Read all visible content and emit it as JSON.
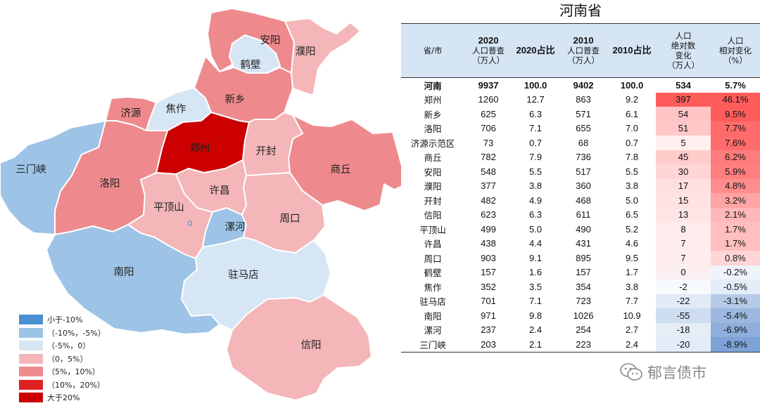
{
  "title": "河南省",
  "header": {
    "province": "省/市",
    "pop2020_year": "2020",
    "pop2020_sub1": "人口普查",
    "pop2020_sub2": "（万人）",
    "share2020": "2020占比",
    "pop2010_year": "2010",
    "pop2010_sub1": "人口普查",
    "pop2010_sub2": "（万人）",
    "share2010": "2010占比",
    "abs_l1": "人口",
    "abs_l2": "绝对数",
    "abs_l3": "变化",
    "abs_l4": "（万人）",
    "rel_l1": "人口",
    "rel_l2": "相对变化",
    "rel_l3": "（%）"
  },
  "chart_data": {
    "type": "table",
    "rows": [
      {
        "name": "河南",
        "pop2020": "9937",
        "share2020": "100.0",
        "pop2010": "9402",
        "share2010": "100.0",
        "abs": "534",
        "rel": "5.7%",
        "abs_value": 534,
        "rel_value": 5.7,
        "total": true
      },
      {
        "name": "郑州",
        "pop2020": "1260",
        "share2020": "12.7",
        "pop2010": "863",
        "share2010": "9.2",
        "abs": "397",
        "rel": "46.1%",
        "abs_value": 397,
        "rel_value": 46.1
      },
      {
        "name": "新乡",
        "pop2020": "625",
        "share2020": "6.3",
        "pop2010": "571",
        "share2010": "6.1",
        "abs": "54",
        "rel": "9.5%",
        "abs_value": 54,
        "rel_value": 9.5
      },
      {
        "name": "洛阳",
        "pop2020": "706",
        "share2020": "7.1",
        "pop2010": "655",
        "share2010": "7.0",
        "abs": "51",
        "rel": "7.7%",
        "abs_value": 51,
        "rel_value": 7.7
      },
      {
        "name": "济源示范区",
        "pop2020": "73",
        "share2020": "0.7",
        "pop2010": "68",
        "share2010": "0.7",
        "abs": "5",
        "rel": "7.6%",
        "abs_value": 5,
        "rel_value": 7.6
      },
      {
        "name": "商丘",
        "pop2020": "782",
        "share2020": "7.9",
        "pop2010": "736",
        "share2010": "7.8",
        "abs": "45",
        "rel": "6.2%",
        "abs_value": 45,
        "rel_value": 6.2
      },
      {
        "name": "安阳",
        "pop2020": "548",
        "share2020": "5.5",
        "pop2010": "517",
        "share2010": "5.5",
        "abs": "30",
        "rel": "5.9%",
        "abs_value": 30,
        "rel_value": 5.9
      },
      {
        "name": "濮阳",
        "pop2020": "377",
        "share2020": "3.8",
        "pop2010": "360",
        "share2010": "3.8",
        "abs": "17",
        "rel": "4.8%",
        "abs_value": 17,
        "rel_value": 4.8
      },
      {
        "name": "开封",
        "pop2020": "482",
        "share2020": "4.9",
        "pop2010": "468",
        "share2010": "5.0",
        "abs": "15",
        "rel": "3.2%",
        "abs_value": 15,
        "rel_value": 3.2
      },
      {
        "name": "信阳",
        "pop2020": "623",
        "share2020": "6.3",
        "pop2010": "611",
        "share2010": "6.5",
        "abs": "13",
        "rel": "2.1%",
        "abs_value": 13,
        "rel_value": 2.1
      },
      {
        "name": "平顶山",
        "pop2020": "499",
        "share2020": "5.0",
        "pop2010": "490",
        "share2010": "5.2",
        "abs": "8",
        "rel": "1.7%",
        "abs_value": 8,
        "rel_value": 1.7
      },
      {
        "name": "许昌",
        "pop2020": "438",
        "share2020": "4.4",
        "pop2010": "431",
        "share2010": "4.6",
        "abs": "7",
        "rel": "1.7%",
        "abs_value": 7,
        "rel_value": 1.7
      },
      {
        "name": "周口",
        "pop2020": "903",
        "share2020": "9.1",
        "pop2010": "895",
        "share2010": "9.5",
        "abs": "7",
        "rel": "0.8%",
        "abs_value": 7,
        "rel_value": 0.8
      },
      {
        "name": "鹤壁",
        "pop2020": "157",
        "share2020": "1.6",
        "pop2010": "157",
        "share2010": "1.7",
        "abs": "0",
        "rel": "-0.2%",
        "abs_value": 0,
        "rel_value": -0.2
      },
      {
        "name": "焦作",
        "pop2020": "352",
        "share2020": "3.5",
        "pop2010": "354",
        "share2010": "3.8",
        "abs": "-2",
        "rel": "-0.5%",
        "abs_value": -2,
        "rel_value": -0.5
      },
      {
        "name": "驻马店",
        "pop2020": "701",
        "share2020": "7.1",
        "pop2010": "723",
        "share2010": "7.7",
        "abs": "-22",
        "rel": "-3.1%",
        "abs_value": -22,
        "rel_value": -3.1
      },
      {
        "name": "南阳",
        "pop2020": "971",
        "share2020": "9.8",
        "pop2010": "1026",
        "share2010": "10.9",
        "abs": "-55",
        "rel": "-5.4%",
        "abs_value": -55,
        "rel_value": -5.4
      },
      {
        "name": "漯河",
        "pop2020": "237",
        "share2020": "2.4",
        "pop2010": "254",
        "share2010": "2.7",
        "abs": "-18",
        "rel": "-6.9%",
        "abs_value": -18,
        "rel_value": -6.9
      },
      {
        "name": "三门峡",
        "pop2020": "203",
        "share2020": "2.1",
        "pop2010": "223",
        "share2010": "2.4",
        "abs": "-20",
        "rel": "-8.9%",
        "abs_value": -20,
        "rel_value": -8.9
      }
    ]
  },
  "map": {
    "colors": {
      "lt_neg10": "#4a90d0",
      "neg10_neg5": "#9dc3e6",
      "neg5_0": "#d6e6f4",
      "pos0_5": "#f4b6b8",
      "pos5_10": "#ee8a8d",
      "pos10_20": "#e02020",
      "gt_20": "#cc0000",
      "border": "#ffffff"
    },
    "regions": {
      "anyang": "安阳",
      "puyang": "濮阳",
      "hebi": "鹤壁",
      "xinxiang": "新乡",
      "jiyuan": "济源",
      "jiaozuo": "焦作",
      "zhengzhou": "郑州",
      "kaifeng": "开封",
      "shangqiu": "商丘",
      "sanmenxia": "三门峡",
      "luoyang": "洛阳",
      "xuchang": "许昌",
      "pingdingshan": "平顶山",
      "luohe": "漯河",
      "zhoukou": "周口",
      "nanyang": "南阳",
      "zhumadian": "驻马店",
      "xinyang": "信阳"
    }
  },
  "legend": [
    {
      "label": "小于-10%",
      "color": "#4a90d0"
    },
    {
      "label": "（-10%，-5%）",
      "color": "#9dc3e6"
    },
    {
      "label": "（-5%，0）",
      "color": "#d6e6f4"
    },
    {
      "label": "（0，5%）",
      "color": "#f4b6b8"
    },
    {
      "label": "（5%，10%）",
      "color": "#ee8a8d"
    },
    {
      "label": "（10%，20%）",
      "color": "#e02020"
    },
    {
      "label": "大于20%",
      "color": "#cc0000"
    }
  ],
  "watermark": {
    "text": "郁言债市",
    "icon": "wechat-icon"
  }
}
